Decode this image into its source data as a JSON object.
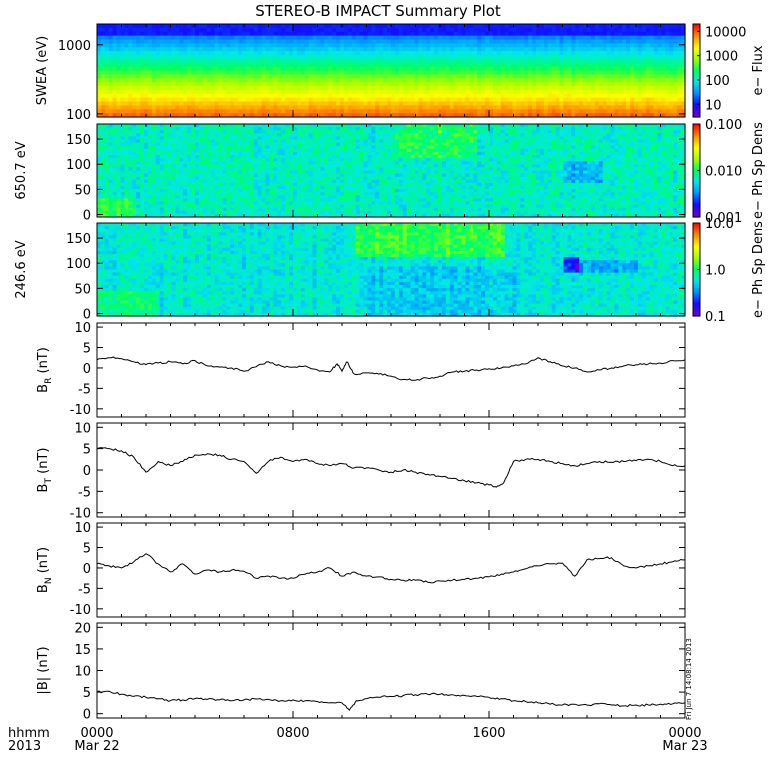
{
  "title": "STEREO-B IMPACT Summary Plot",
  "stamp": "Fri Jun  7 14:08:14 2013",
  "time_axis": {
    "row1_label": "hhmm",
    "row2_label": "2013",
    "ticks": [
      {
        "t": 0,
        "label": "0000",
        "sublabel": "Mar 22"
      },
      {
        "t": 8,
        "label": "0800",
        "sublabel": ""
      },
      {
        "t": 16,
        "label": "1600",
        "sublabel": ""
      },
      {
        "t": 24,
        "label": "0000",
        "sublabel": "Mar 23"
      }
    ]
  },
  "colors": {
    "spectrogram_scale": [
      "#6a00d8",
      "#1010ff",
      "#0090ff",
      "#00e8e8",
      "#00ff60",
      "#a0ff00",
      "#ffff00",
      "#ff9000",
      "#ff1000"
    ],
    "line": "#000000"
  },
  "chart_data": [
    {
      "type": "heatmap",
      "ylabel": "SWEA (eV)",
      "yscale": "log",
      "ylim": [
        90,
        2000
      ],
      "yticks": [
        "1000",
        "100"
      ],
      "ytick_values": [
        1000,
        100
      ],
      "colorbar": {
        "label": "e− Flux",
        "scale": "log",
        "range": [
          3,
          20000
        ],
        "ticks": [
          "10000",
          "1000",
          "100",
          "10"
        ],
        "tick_values": [
          10000,
          1000,
          100,
          10
        ]
      },
      "pattern": "flux_decreasing_with_energy",
      "note_values": {
        "top_level": 10,
        "mid_level": 300,
        "bottom_level": 6000
      }
    },
    {
      "type": "heatmap",
      "ylabel": "650.7 eV",
      "ylim": [
        -5,
        180
      ],
      "yticks": [
        "150",
        "100",
        "50",
        "0"
      ],
      "ytick_values": [
        150,
        100,
        50,
        0
      ],
      "colorbar": {
        "label": "e− Ph Sp Dens",
        "scale": "log",
        "range": [
          0.001,
          0.1
        ],
        "ticks": [
          "0.100",
          "0.010",
          "0.001"
        ],
        "tick_values": [
          0.1,
          0.01,
          0.001
        ]
      },
      "pattern": "pitch_angle_high_energy"
    },
    {
      "type": "heatmap",
      "ylabel": "246.6 eV",
      "ylim": [
        -5,
        180
      ],
      "yticks": [
        "150",
        "100",
        "50",
        "0"
      ],
      "ytick_values": [
        150,
        100,
        50,
        0
      ],
      "colorbar": {
        "label": "e− Ph Sp Dens",
        "scale": "log",
        "range": [
          0.1,
          10
        ],
        "ticks": [
          "10.0",
          "1.0",
          "0.1"
        ],
        "tick_values": [
          10,
          1,
          0.1
        ]
      },
      "pattern": "pitch_angle_low_energy"
    },
    {
      "type": "line",
      "ylabel_main": "B",
      "ylabel_sub": "R",
      "ylabel_unit": "(nT)",
      "ylim": [
        -12,
        11
      ],
      "yticks": [
        "10",
        "5",
        "0",
        "-5",
        "-10"
      ],
      "ytick_values": [
        10,
        5,
        0,
        -5,
        -10
      ],
      "x": [
        0,
        0.5,
        1,
        1.5,
        2,
        2.5,
        3,
        3.5,
        4,
        4.5,
        5,
        5.5,
        6,
        6.5,
        7,
        7.5,
        8,
        8.5,
        9,
        9.5,
        9.8,
        10,
        10.2,
        10.5,
        11,
        11.5,
        12,
        12.5,
        13,
        13.5,
        14,
        14.5,
        15,
        15.5,
        16,
        16.5,
        17,
        17.5,
        18,
        18.5,
        19,
        19.5,
        20,
        20.5,
        21,
        21.5,
        22,
        22.5,
        23,
        23.5,
        24
      ],
      "y": [
        2,
        2.5,
        2.3,
        1.5,
        0.8,
        1.2,
        1.5,
        1,
        1.8,
        0.5,
        0.2,
        0,
        -0.8,
        0.3,
        1.5,
        0.5,
        0.2,
        0.5,
        -0.5,
        -1,
        1,
        -0.8,
        1.5,
        -1.5,
        -1.2,
        -1.5,
        -2,
        -2.8,
        -3,
        -2.5,
        -2,
        -1,
        -0.8,
        -0.5,
        -0.2,
        0,
        0.5,
        1,
        2.5,
        1.5,
        0.5,
        0,
        -1,
        -0.5,
        0,
        0.5,
        0.8,
        1,
        1.2,
        1.8,
        2
      ]
    },
    {
      "type": "line",
      "ylabel_main": "B",
      "ylabel_sub": "T",
      "ylabel_unit": "(nT)",
      "ylim": [
        -11,
        11
      ],
      "yticks": [
        "10",
        "5",
        "0",
        "-5",
        "-10"
      ],
      "ytick_values": [
        10,
        5,
        0,
        -5,
        -10
      ],
      "x": [
        0,
        0.5,
        1,
        1.5,
        2,
        2.5,
        3,
        3.5,
        4,
        4.5,
        5,
        5.5,
        6,
        6.5,
        7,
        7.5,
        8,
        8.5,
        9,
        9.5,
        10,
        10.5,
        11,
        11.5,
        12,
        12.5,
        13,
        13.5,
        14,
        14.5,
        15,
        15.5,
        16,
        16.3,
        16.6,
        17,
        17.5,
        18,
        18.5,
        19,
        19.5,
        20,
        20.5,
        21,
        21.5,
        22,
        22.5,
        23,
        23.5,
        24
      ],
      "y": [
        5,
        5,
        4.5,
        3,
        -0.5,
        2,
        1,
        2,
        3.5,
        3.8,
        3.5,
        2.5,
        2,
        -0.8,
        2,
        3,
        2,
        2.5,
        1.5,
        1,
        1.5,
        0.5,
        0.5,
        0,
        -0.5,
        0,
        -0.5,
        -1,
        -1.5,
        -2,
        -2.5,
        -3,
        -3.5,
        -4,
        -3,
        2,
        2.5,
        2.5,
        2,
        1.5,
        1,
        1.5,
        2,
        1.8,
        2,
        2.2,
        2.5,
        2,
        1,
        1
      ]
    },
    {
      "type": "line",
      "ylabel_main": "B",
      "ylabel_sub": "N",
      "ylabel_unit": "(nT)",
      "ylim": [
        -12,
        11
      ],
      "yticks": [
        "10",
        "5",
        "0",
        "-5",
        "-10"
      ],
      "ytick_values": [
        10,
        5,
        0,
        -5,
        -10
      ],
      "x": [
        0,
        0.5,
        1,
        1.5,
        2,
        2.5,
        3,
        3.5,
        4,
        4.5,
        5,
        5.5,
        6,
        6.5,
        7,
        7.5,
        8,
        8.5,
        9,
        9.5,
        10,
        10.5,
        11,
        11.5,
        12,
        12.5,
        13,
        13.5,
        14,
        14.5,
        15,
        15.5,
        16,
        16.5,
        17,
        17.5,
        18,
        18.5,
        19,
        19.5,
        20,
        20.5,
        21,
        21.5,
        22,
        22.5,
        23,
        23.5,
        24
      ],
      "y": [
        1,
        0.5,
        0,
        1.5,
        3.5,
        1,
        -1,
        1,
        -1.5,
        -0.5,
        -1,
        -0.5,
        -0.8,
        -2.5,
        -2,
        -2.5,
        -2.5,
        -1.5,
        -1,
        0,
        -2,
        -1,
        -2,
        -2.2,
        -2.8,
        -3,
        -3,
        -3.5,
        -3.2,
        -3,
        -2.8,
        -2.5,
        -2.2,
        -1.5,
        -1,
        -0.2,
        0.5,
        1,
        1.2,
        -2,
        2,
        2.3,
        2.5,
        0.5,
        0,
        0.5,
        1,
        1.5,
        2
      ]
    },
    {
      "type": "line",
      "ylabel": "|B| (nT)",
      "ylim": [
        -1,
        21
      ],
      "yticks": [
        "20",
        "15",
        "10",
        "5",
        "0"
      ],
      "ytick_values": [
        20,
        15,
        10,
        5,
        0
      ],
      "x": [
        0,
        0.5,
        1,
        1.5,
        2,
        2.5,
        3,
        3.5,
        4,
        4.5,
        5,
        5.5,
        6,
        6.5,
        7,
        7.5,
        8,
        8.5,
        9,
        9.5,
        10,
        10.3,
        10.6,
        11,
        11.5,
        12,
        12.5,
        13,
        13.5,
        14,
        14.5,
        15,
        15.5,
        16,
        16.5,
        17,
        17.5,
        18,
        18.5,
        19,
        19.5,
        20,
        20.5,
        21,
        21.5,
        22,
        22.5,
        23,
        23.5,
        24
      ],
      "y": [
        5,
        5.2,
        4.5,
        4,
        3.8,
        3.5,
        3,
        3.2,
        3.5,
        3.3,
        3.2,
        3,
        3.2,
        3.4,
        3.3,
        3,
        3.2,
        3,
        2.8,
        2.5,
        2.5,
        0.8,
        3,
        3.5,
        3.8,
        4,
        4.2,
        4.4,
        4.5,
        4.5,
        4.4,
        4.2,
        4,
        3.8,
        3.5,
        3,
        2.8,
        2.5,
        2.2,
        2,
        2.2,
        2,
        2.3,
        2,
        1.8,
        2,
        2,
        2.2,
        2.3,
        2.5
      ]
    }
  ]
}
